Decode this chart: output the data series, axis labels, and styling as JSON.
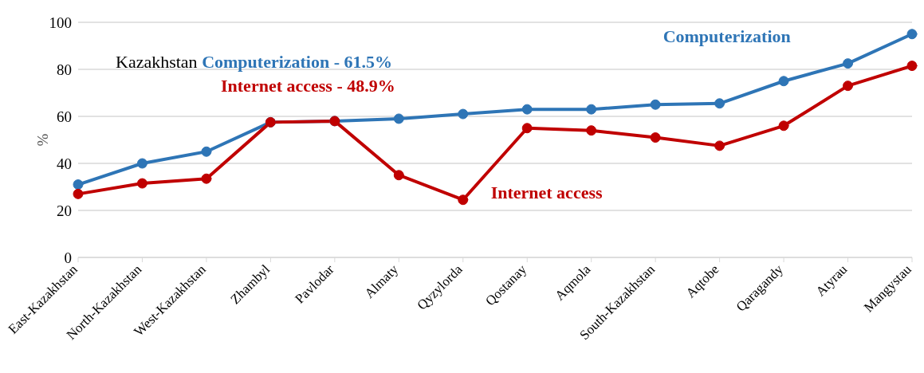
{
  "chart_data": {
    "type": "line",
    "ylabel": "%",
    "categories": [
      "East-Kazakhstan",
      "North-Kazakhstan",
      "West-Kazakhstan",
      "Zhambyl",
      "Pavlodar",
      "Almaty",
      "Qyzylorda",
      "Qostanay",
      "Aqmola",
      "South-Kazakhstan",
      "Aqtobe",
      "Qaragandy",
      "Atyrau",
      "Mangystau"
    ],
    "series": [
      {
        "name": "Computerization",
        "color": "#2e75b6",
        "values": [
          31,
          40,
          45,
          57.5,
          58,
          59,
          61,
          63,
          63,
          65,
          65.5,
          75,
          82.5,
          95
        ]
      },
      {
        "name": "Internet access",
        "color": "#c00000",
        "values": [
          27,
          31.5,
          33.5,
          57.5,
          58,
          35,
          24.5,
          55,
          54,
          51,
          47.5,
          56,
          73,
          81.5
        ]
      }
    ],
    "annotations": [
      "Kazakhstan",
      "Computerization - 61.5%",
      "Internet access - 48.9%"
    ],
    "ylim": [
      0,
      100
    ],
    "yticks": [
      0,
      20,
      40,
      60,
      80,
      100
    ],
    "grid": "y",
    "marker": "circle",
    "line_style": "solid"
  }
}
